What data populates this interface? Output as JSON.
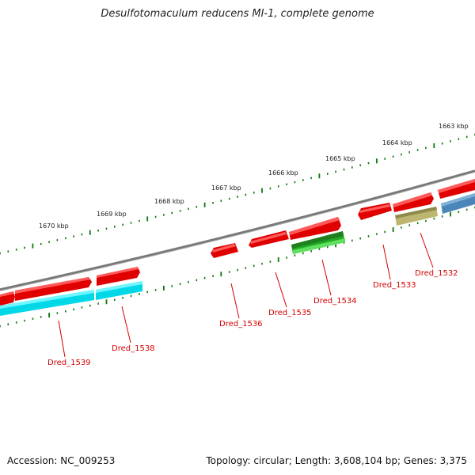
{
  "title": "Desulfotomaculum reducens MI-1, complete genome",
  "footer": {
    "accession": "Accession: NC_009253",
    "summary": "Topology: circular; Length: 3,608,104 bp; Genes: 3,375"
  },
  "colors": {
    "backbone": "#8a8a8a",
    "tick": "#0a7a0a",
    "gene_forward": "#ee1111",
    "gene_reverse_cyan": "#00e5ee",
    "gene_reverse_green": "#22aa22",
    "gene_reverse_olive": "#b8b46a",
    "gene_reverse_blue": "#4a86b8",
    "label": "#d40000"
  },
  "scale_ticks": [
    "1663 kbp",
    "1664 kbp",
    "1665 kbp",
    "1666 kbp",
    "1667 kbp",
    "1668 kbp",
    "1669 kbp",
    "1670 kbp"
  ],
  "gene_labels": [
    "Dred_1532",
    "Dred_1533",
    "Dred_1534",
    "Dred_1535",
    "Dred_1536",
    "Dred_1538",
    "Dred_1539"
  ]
}
